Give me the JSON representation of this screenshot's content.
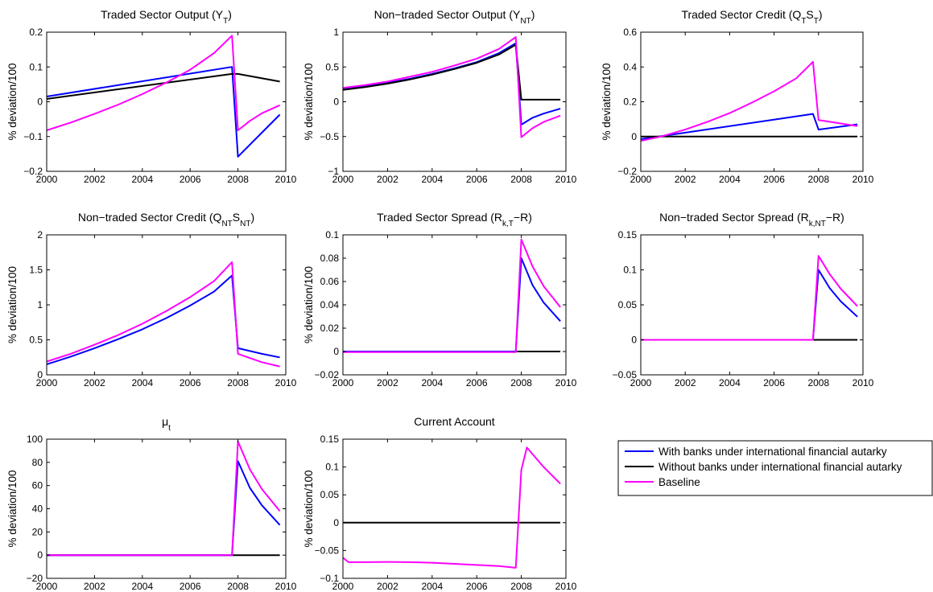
{
  "chart_data": [
    {
      "type": "line",
      "title": "Traded Sector Output (Y_T)",
      "title_main": "Traded Sector Output (Y",
      "title_sub": "T",
      "title_tail": ")",
      "ylabel": "% deviation/100",
      "xlim": [
        2000,
        2010
      ],
      "ylim": [
        -0.2,
        0.2
      ],
      "xticks": [
        "2000",
        "2002",
        "2004",
        "2006",
        "2008",
        "2010"
      ],
      "yticks": [
        "0.2",
        "0.1",
        "0",
        "-0.1",
        "-0.2"
      ],
      "series": [
        {
          "color": "#0000ff",
          "x": [
            2000,
            2007.75,
            2008,
            2009.75
          ],
          "y": [
            0.015,
            0.1,
            -0.158,
            -0.037
          ]
        },
        {
          "color": "#000000",
          "x": [
            2000,
            2007.75,
            2008,
            2009.75
          ],
          "y": [
            0.008,
            0.08,
            0.08,
            0.058
          ]
        },
        {
          "color": "#ff00ff",
          "x": [
            2000,
            2001,
            2002,
            2003,
            2004,
            2005,
            2006,
            2007,
            2007.75,
            2008,
            2008.5,
            2009,
            2009.75
          ],
          "y": [
            -0.082,
            -0.06,
            -0.035,
            -0.008,
            0.022,
            0.055,
            0.092,
            0.14,
            0.19,
            -0.082,
            -0.055,
            -0.033,
            -0.01
          ]
        }
      ]
    },
    {
      "type": "line",
      "title": "Non-traded Sector Output (Y_NT)",
      "title_main": "Non−traded Sector Output (Y",
      "title_sub": "NT",
      "title_tail": ")",
      "ylabel": "% deviation/100",
      "xlim": [
        2000,
        2010
      ],
      "ylim": [
        -1,
        1
      ],
      "xticks": [
        "2000",
        "2002",
        "2004",
        "2006",
        "2008",
        "2010"
      ],
      "yticks": [
        "1",
        "0.5",
        "0",
        "-0.5",
        "-1"
      ],
      "series": [
        {
          "color": "#0000ff",
          "x": [
            2000,
            2001,
            2002,
            2003,
            2004,
            2005,
            2006,
            2007,
            2007.75,
            2008,
            2008.5,
            2009,
            2009.75
          ],
          "y": [
            0.18,
            0.22,
            0.27,
            0.33,
            0.4,
            0.48,
            0.57,
            0.7,
            0.84,
            -0.33,
            -0.23,
            -0.17,
            -0.1
          ]
        },
        {
          "color": "#000000",
          "x": [
            2000,
            2001,
            2002,
            2003,
            2004,
            2005,
            2006,
            2007,
            2007.75,
            2008,
            2009.75
          ],
          "y": [
            0.17,
            0.21,
            0.26,
            0.32,
            0.39,
            0.47,
            0.56,
            0.68,
            0.82,
            0.03,
            0.03
          ]
        },
        {
          "color": "#ff00ff",
          "x": [
            2000,
            2001,
            2002,
            2003,
            2004,
            2005,
            2006,
            2007,
            2007.75,
            2008,
            2008.5,
            2009,
            2009.75
          ],
          "y": [
            0.2,
            0.24,
            0.29,
            0.36,
            0.43,
            0.52,
            0.62,
            0.76,
            0.93,
            -0.51,
            -0.38,
            -0.29,
            -0.2
          ]
        }
      ]
    },
    {
      "type": "line",
      "title": "Traded Sector Credit (Q_T S_T)",
      "title_main": "Traded Sector Credit (Q",
      "title_sub": "T",
      "title_mid": "S",
      "title_sub2": "T",
      "title_tail": ")",
      "ylabel": "% deviation/100",
      "xlim": [
        2000,
        2010
      ],
      "ylim": [
        -0.2,
        0.6
      ],
      "xticks": [
        "2000",
        "2002",
        "2004",
        "2006",
        "2008",
        "2010"
      ],
      "yticks": [
        "0.6",
        "0.4",
        "0.2",
        "0",
        "-0.2"
      ],
      "series": [
        {
          "color": "#0000ff",
          "x": [
            2000,
            2007.75,
            2008,
            2009.75
          ],
          "y": [
            -0.015,
            0.13,
            0.04,
            0.07
          ]
        },
        {
          "color": "#000000",
          "x": [
            2000,
            2009.75
          ],
          "y": [
            0,
            0
          ]
        },
        {
          "color": "#ff00ff",
          "x": [
            2000,
            2001,
            2002,
            2003,
            2004,
            2005,
            2006,
            2007,
            2007.75,
            2008,
            2009,
            2009.75
          ],
          "y": [
            -0.025,
            0.003,
            0.04,
            0.085,
            0.135,
            0.195,
            0.26,
            0.335,
            0.43,
            0.095,
            0.075,
            0.06
          ]
        }
      ]
    },
    {
      "type": "line",
      "title": "Non-traded Sector Credit (Q_NT S_NT)",
      "title_main": "Non−traded Sector Credit (Q",
      "title_sub": "NT",
      "title_mid": "S",
      "title_sub2": "NT",
      "title_tail": ")",
      "ylabel": "% deviation/100",
      "xlim": [
        2000,
        2010
      ],
      "ylim": [
        0,
        2
      ],
      "xticks": [
        "2000",
        "2002",
        "2004",
        "2006",
        "2008",
        "2010"
      ],
      "yticks": [
        "2",
        "1.5",
        "1",
        "0.5",
        "0"
      ],
      "series": [
        {
          "color": "#0000ff",
          "x": [
            2000,
            2001,
            2002,
            2003,
            2004,
            2005,
            2006,
            2007,
            2007.75,
            2008,
            2009,
            2009.75
          ],
          "y": [
            0.15,
            0.26,
            0.38,
            0.51,
            0.65,
            0.81,
            0.99,
            1.19,
            1.42,
            0.38,
            0.3,
            0.25
          ]
        },
        {
          "color": "#ff00ff",
          "x": [
            2000,
            2001,
            2002,
            2003,
            2004,
            2005,
            2006,
            2007,
            2007.75,
            2008,
            2009,
            2009.75
          ],
          "y": [
            0.19,
            0.3,
            0.43,
            0.57,
            0.73,
            0.91,
            1.11,
            1.34,
            1.61,
            0.3,
            0.18,
            0.12
          ]
        }
      ]
    },
    {
      "type": "line",
      "title": "Traded Sector Spread (R_k,T - R)",
      "title_main": "Traded Sector Spread (R",
      "title_sub": "k,T",
      "title_tail": "−R)",
      "ylabel": "% deviation/100",
      "xlim": [
        2000,
        2010
      ],
      "ylim": [
        -0.02,
        0.1
      ],
      "xticks": [
        "2000",
        "2002",
        "2004",
        "2006",
        "2008",
        "2010"
      ],
      "yticks": [
        "0.1",
        "0.08",
        "0.06",
        "0.04",
        "0.02",
        "0",
        "-0.02"
      ],
      "series": [
        {
          "color": "#000000",
          "x": [
            2000,
            2009.75
          ],
          "y": [
            0,
            0
          ]
        },
        {
          "color": "#0000ff",
          "x": [
            2000,
            2007.75,
            2008,
            2008.5,
            2009,
            2009.75
          ],
          "y": [
            0,
            0,
            0.08,
            0.057,
            0.042,
            0.026
          ]
        },
        {
          "color": "#ff00ff",
          "x": [
            2000,
            2007.75,
            2008,
            2008.5,
            2009,
            2009.75
          ],
          "y": [
            -0.0005,
            -0.0005,
            0.096,
            0.073,
            0.056,
            0.038
          ]
        }
      ]
    },
    {
      "type": "line",
      "title": "Non-traded Sector Spread (R_k,NT - R)",
      "title_main": "Non−traded Sector Spread (R",
      "title_sub": "k,NT",
      "title_tail": "−R)",
      "ylabel": "",
      "xlim": [
        2000,
        2010
      ],
      "ylim": [
        -0.05,
        0.15
      ],
      "xticks": [
        "2000",
        "2002",
        "2004",
        "2006",
        "2008",
        "2010"
      ],
      "yticks": [
        "0.15",
        "0.1",
        "0.05",
        "0",
        "-0.05"
      ],
      "series": [
        {
          "color": "#000000",
          "x": [
            2000,
            2009.75
          ],
          "y": [
            0,
            0
          ]
        },
        {
          "color": "#0000ff",
          "x": [
            2000,
            2007.75,
            2008,
            2008.5,
            2009,
            2009.75
          ],
          "y": [
            0,
            0,
            0.1,
            0.074,
            0.055,
            0.033
          ]
        },
        {
          "color": "#ff00ff",
          "x": [
            2000,
            2007.75,
            2008,
            2008.5,
            2009,
            2009.75
          ],
          "y": [
            0,
            0,
            0.12,
            0.094,
            0.073,
            0.048
          ]
        }
      ]
    },
    {
      "type": "line",
      "title": "μ_t",
      "title_main": "μ",
      "title_sub": "t",
      "title_tail": "",
      "ylabel": "% deviation/100",
      "xlim": [
        2000,
        2010
      ],
      "ylim": [
        -20,
        100
      ],
      "xticks": [
        "2000",
        "2002",
        "2004",
        "2006",
        "2008",
        "2010"
      ],
      "yticks": [
        "100",
        "80",
        "60",
        "40",
        "20",
        "0",
        "-20"
      ],
      "series": [
        {
          "color": "#000000",
          "x": [
            2000,
            2009.75
          ],
          "y": [
            0,
            0
          ]
        },
        {
          "color": "#0000ff",
          "x": [
            2000,
            2007.75,
            2008,
            2008.5,
            2009,
            2009.75
          ],
          "y": [
            0,
            0,
            81,
            58,
            43,
            26
          ]
        },
        {
          "color": "#ff00ff",
          "x": [
            2000,
            2007.75,
            2008,
            2008.5,
            2009,
            2009.75
          ],
          "y": [
            0,
            0,
            98,
            74,
            57,
            38
          ]
        }
      ]
    },
    {
      "type": "line",
      "title": "Current Account",
      "title_main": "Current Account",
      "title_sub": "",
      "title_tail": "",
      "ylabel": "% deviation/100",
      "xlim": [
        2000,
        2010
      ],
      "ylim": [
        -0.1,
        0.15
      ],
      "xticks": [
        "2000",
        "2002",
        "2004",
        "2006",
        "2008",
        "2010"
      ],
      "yticks": [
        "0.15",
        "0.1",
        "0.05",
        "0",
        "-0.05",
        "-0.1"
      ],
      "series": [
        {
          "color": "#000000",
          "x": [
            2000,
            2009.75
          ],
          "y": [
            0,
            0
          ]
        },
        {
          "color": "#ff00ff",
          "x": [
            2000,
            2000.25,
            2001,
            2002,
            2003,
            2004,
            2005,
            2006,
            2007,
            2007.75,
            2008,
            2008.25,
            2009,
            2009.75
          ],
          "y": [
            -0.063,
            -0.071,
            -0.071,
            -0.0705,
            -0.071,
            -0.072,
            -0.074,
            -0.076,
            -0.078,
            -0.081,
            0.095,
            0.135,
            0.1,
            0.07
          ]
        }
      ]
    }
  ],
  "legend": {
    "entries": [
      {
        "label": "With banks under international financial autarky",
        "color": "#0000ff"
      },
      {
        "label": "Without banks under international financial autarky",
        "color": "#000000"
      },
      {
        "label": "Baseline",
        "color": "#ff00ff"
      }
    ]
  }
}
